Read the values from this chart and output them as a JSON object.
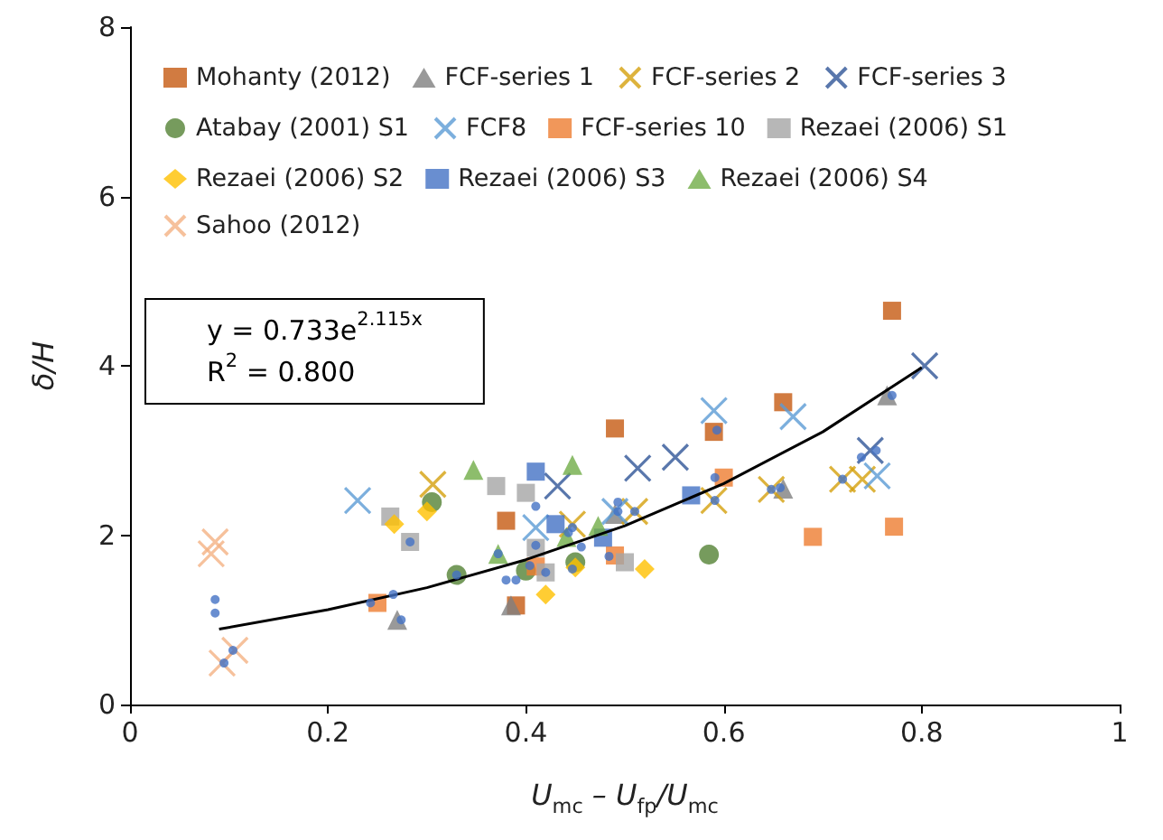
{
  "chart_data": {
    "type": "scatter",
    "xlabel": "U$_{mc}$ – U$_{fp}$/U$_{mc}$",
    "ylabel": "δ/H",
    "xlim": [
      0,
      1.0
    ],
    "xticks": [
      0,
      0.2,
      0.4,
      0.6,
      0.8,
      1.0
    ],
    "ylim": [
      0,
      8
    ],
    "yticks": [
      0,
      2,
      4,
      6,
      8
    ],
    "grid": false,
    "legend": "top",
    "annotations": [
      "y = 0.733e$^{2.115x}$",
      "R$^{2}$ = 0.800"
    ],
    "series": [
      {
        "name": "Mohanty (2012)",
        "color": "#c55a11",
        "marker": "square",
        "x": [
          0.38,
          0.39,
          0.49,
          0.59,
          0.66,
          0.77
        ],
        "values": [
          2.17,
          1.17,
          3.26,
          3.22,
          3.57,
          4.65
        ]
      },
      {
        "name": "FCF-series 1",
        "color": "#7f7f7f",
        "marker": "triangle",
        "x": [
          0.27,
          0.385,
          0.49,
          0.66,
          0.765
        ],
        "values": [
          1.0,
          1.17,
          2.25,
          2.55,
          3.65
        ]
      },
      {
        "name": "FCF-series 2",
        "color": "#d4a00c",
        "marker": "cross",
        "x": [
          0.306,
          0.447,
          0.51,
          0.59,
          0.648,
          0.72,
          0.74
        ],
        "values": [
          2.6,
          2.13,
          2.28,
          2.41,
          2.54,
          2.66,
          2.66
        ]
      },
      {
        "name": "FCF-series 3",
        "color": "#2f5597",
        "marker": "cross",
        "x": [
          0.432,
          0.513,
          0.551,
          0.748,
          0.803
        ],
        "values": [
          2.58,
          2.79,
          2.92,
          3.0,
          4.0
        ]
      },
      {
        "name": "Atabay (2001) S1",
        "color": "#548235",
        "marker": "circle",
        "x": [
          0.305,
          0.33,
          0.4,
          0.45,
          0.585
        ],
        "values": [
          2.39,
          1.53,
          1.58,
          1.68,
          1.77
        ]
      },
      {
        "name": "FCF8",
        "color": "#5b9bd5",
        "marker": "cross",
        "x": [
          0.23,
          0.41,
          0.49,
          0.59,
          0.67,
          0.755
        ],
        "values": [
          2.41,
          2.09,
          2.28,
          3.47,
          3.4,
          2.7
        ]
      },
      {
        "name": "FCF-series 10",
        "color": "#ed7d31",
        "marker": "square",
        "x": [
          0.25,
          0.41,
          0.49,
          0.6,
          0.69,
          0.772
        ],
        "values": [
          1.2,
          1.63,
          1.76,
          2.68,
          1.98,
          2.1
        ]
      },
      {
        "name": "Rezaei (2006) S1",
        "color": "#a5a5a5",
        "marker": "square",
        "x": [
          0.263,
          0.283,
          0.37,
          0.4,
          0.41,
          0.42,
          0.5
        ],
        "values": [
          2.22,
          1.92,
          2.58,
          2.5,
          1.85,
          1.56,
          1.68
        ]
      },
      {
        "name": "Rezaei (2006) S2",
        "color": "#ffc000",
        "marker": "diamond",
        "x": [
          0.267,
          0.3,
          0.42,
          0.45,
          0.52
        ],
        "values": [
          2.13,
          2.28,
          1.3,
          1.62,
          1.6
        ]
      },
      {
        "name": "Rezaei (2006) S3",
        "color": "#4472c4",
        "marker": "square",
        "x": [
          0.41,
          0.43,
          0.478,
          0.567
        ],
        "values": [
          2.75,
          2.13,
          1.97,
          2.47
        ]
      },
      {
        "name": "Rezaei (2006) S4",
        "color": "#70ad47",
        "marker": "triangle",
        "x": [
          0.347,
          0.372,
          0.441,
          0.447,
          0.473
        ],
        "values": [
          2.77,
          1.78,
          1.98,
          2.83,
          2.11
        ]
      },
      {
        "name": "Sahoo (2012)",
        "color": "#f4b183",
        "marker": "cross",
        "x": [
          0.082,
          0.086,
          0.093,
          0.106
        ],
        "values": [
          1.78,
          1.92,
          0.49,
          0.64
        ]
      },
      {
        "color": "#4472c4",
        "marker": "circle",
        "x": [
          0.086,
          0.086,
          0.095,
          0.104,
          0.243,
          0.266,
          0.274,
          0.283,
          0.33,
          0.372,
          0.38,
          0.39,
          0.404,
          0.41,
          0.41,
          0.42,
          0.443,
          0.447,
          0.447,
          0.456,
          0.484,
          0.493,
          0.493,
          0.51,
          0.591,
          0.591,
          0.593,
          0.648,
          0.657,
          0.72,
          0.739,
          0.754,
          0.77
        ],
        "values": [
          1.08,
          1.24,
          0.49,
          0.64,
          1.2,
          1.3,
          1.0,
          1.92,
          1.53,
          1.78,
          1.47,
          1.47,
          1.64,
          2.34,
          1.88,
          1.56,
          2.03,
          2.09,
          1.6,
          1.86,
          1.75,
          2.39,
          2.28,
          2.28,
          2.68,
          2.41,
          3.24,
          2.54,
          2.56,
          2.66,
          2.92,
          3.0,
          3.65
        ]
      },
      {
        "type": "line",
        "color": "#000000",
        "marker": "none",
        "x": [
          0.09,
          0.2,
          0.3,
          0.4,
          0.5,
          0.6,
          0.7,
          0.8
        ],
        "values": [
          0.89,
          1.12,
          1.38,
          1.71,
          2.11,
          2.61,
          3.22,
          3.98
        ]
      }
    ]
  }
}
